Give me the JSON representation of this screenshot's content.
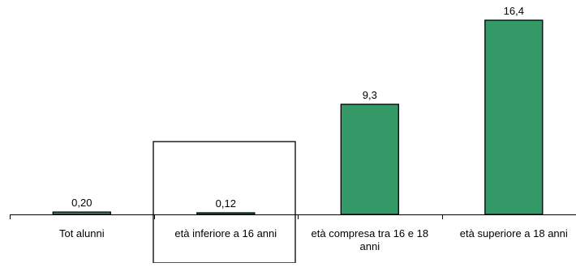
{
  "colors": {
    "bar_fill": "#339966",
    "bar_stroke": "#000000",
    "axis": "#000000"
  },
  "chart_data": {
    "type": "bar",
    "title": "",
    "xlabel": "",
    "ylabel": "",
    "categories": [
      "Tot alunni",
      "età inferiore a 16 anni",
      "età compresa tra 16 e 18 anni",
      "età superiore a 18 anni"
    ],
    "category_label_lines": [
      [
        "Tot alunni"
      ],
      [
        "età inferiore a 16 anni"
      ],
      [
        "età compresa tra 16 e 18",
        "anni"
      ],
      [
        "età superiore a 18 anni"
      ]
    ],
    "values": [
      0.2,
      0.12,
      9.3,
      16.4
    ],
    "value_labels": [
      "0,20",
      "0,12",
      "9,3",
      "16,4"
    ],
    "ylim": [
      0,
      16.4
    ],
    "grid": false,
    "legend": "none"
  }
}
